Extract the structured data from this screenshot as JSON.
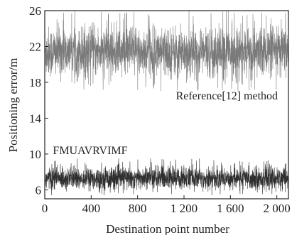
{
  "chart_data": {
    "type": "line",
    "xlabel": "Destination point number",
    "ylabel": "Positioning error/m",
    "xlim": [
      0,
      2100
    ],
    "ylim": [
      5,
      26
    ],
    "x_ticks": [
      0,
      400,
      800,
      1200,
      1600,
      2000
    ],
    "x_tick_labels": [
      "0",
      "400",
      "800",
      "1 200",
      "1 600",
      "2 000"
    ],
    "y_ticks": [
      6,
      10,
      14,
      18,
      22,
      26
    ],
    "y_tick_labels": [
      "6",
      "10",
      "14",
      "18",
      "22",
      "26"
    ],
    "grid": false,
    "legend": "none",
    "annotations": [
      {
        "text": "Reference[12] method",
        "x": 1130,
        "y": 16.1
      },
      {
        "text": "FMUAVRVIMF",
        "x": 70,
        "y": 10.0
      }
    ],
    "series": [
      {
        "mean": 21.4,
        "range": [
          17,
          26
        ],
        "color": "#7a7a7a",
        "samples": 2100
      },
      {
        "mean": 7.3,
        "range": [
          5.4,
          9.5
        ],
        "color": "#2f2f2f",
        "samples": 2100
      }
    ]
  }
}
